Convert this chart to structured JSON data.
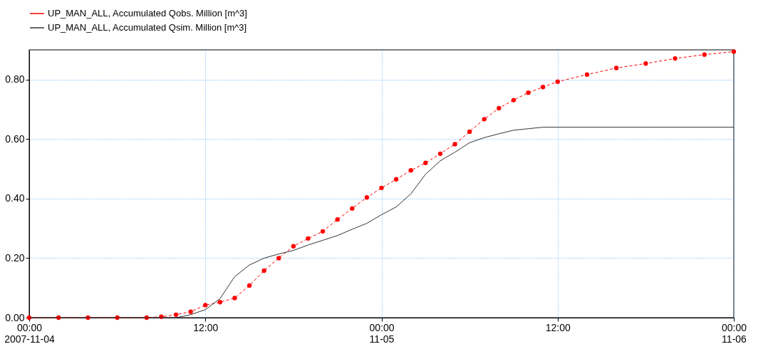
{
  "chart_data": {
    "type": "line",
    "xlim": [
      "2007-11-04T00:00",
      "2007-11-06T00:00"
    ],
    "xticks": [
      {
        "value": "2007-11-04T00:00",
        "label": "00:00\n2007-11-04"
      },
      {
        "value": "2007-11-04T12:00",
        "label": "12:00"
      },
      {
        "value": "2007-11-05T00:00",
        "label": "00:00\n11-05"
      },
      {
        "value": "2007-11-05T12:00",
        "label": "12:00"
      },
      {
        "value": "2007-11-06T00:00",
        "label": "00:00\n11-06"
      }
    ],
    "ylim": [
      0,
      0.9
    ],
    "yticks": [
      {
        "value": 0,
        "label": "0.00"
      },
      {
        "value": 0.2,
        "label": "0.20"
      },
      {
        "value": 0.4,
        "label": "0.40"
      },
      {
        "value": 0.6,
        "label": "0.60"
      },
      {
        "value": 0.8,
        "label": "0.80"
      }
    ],
    "grid": true,
    "legend": "top left",
    "series": [
      {
        "name": "UP_MAN_ALL, Accumulated Qobs. Million [m^3]",
        "color": "#ff0000",
        "marker": "circle",
        "line_style": "dashed",
        "x": [
          "2007-11-04T00:00",
          "2007-11-04T02:00",
          "2007-11-04T04:00",
          "2007-11-04T06:00",
          "2007-11-04T08:00",
          "2007-11-04T09:00",
          "2007-11-04T10:00",
          "2007-11-04T11:00",
          "2007-11-04T12:00",
          "2007-11-04T13:00",
          "2007-11-04T14:00",
          "2007-11-04T15:00",
          "2007-11-04T16:00",
          "2007-11-04T17:00",
          "2007-11-04T18:00",
          "2007-11-04T19:00",
          "2007-11-04T20:00",
          "2007-11-04T21:00",
          "2007-11-04T22:00",
          "2007-11-04T23:00",
          "2007-11-05T00:00",
          "2007-11-05T01:00",
          "2007-11-05T02:00",
          "2007-11-05T03:00",
          "2007-11-05T04:00",
          "2007-11-05T05:00",
          "2007-11-05T06:00",
          "2007-11-05T07:00",
          "2007-11-05T08:00",
          "2007-11-05T09:00",
          "2007-11-05T10:00",
          "2007-11-05T11:00",
          "2007-11-05T12:00",
          "2007-11-05T14:00",
          "2007-11-05T16:00",
          "2007-11-05T18:00",
          "2007-11-05T20:00",
          "2007-11-05T22:00",
          "2007-11-06T00:00"
        ],
        "values": [
          0,
          0,
          0,
          0,
          0,
          0.003,
          0.01,
          0.02,
          0.042,
          0.052,
          0.066,
          0.108,
          0.158,
          0.2,
          0.24,
          0.266,
          0.29,
          0.33,
          0.367,
          0.404,
          0.436,
          0.465,
          0.495,
          0.52,
          0.551,
          0.583,
          0.625,
          0.667,
          0.704,
          0.731,
          0.756,
          0.775,
          0.793,
          0.817,
          0.839,
          0.854,
          0.871,
          0.884,
          0.894
        ]
      },
      {
        "name": "UP_MAN_ALL, Accumulated Qsim. Million [m^3]",
        "color": "#333333",
        "marker": "none",
        "line_style": "solid",
        "x": [
          "2007-11-04T00:00",
          "2007-11-04T10:00",
          "2007-11-04T11:00",
          "2007-11-04T12:00",
          "2007-11-04T13:00",
          "2007-11-04T14:00",
          "2007-11-04T15:00",
          "2007-11-04T16:00",
          "2007-11-04T17:00",
          "2007-11-04T18:00",
          "2007-11-04T19:00",
          "2007-11-04T20:00",
          "2007-11-04T21:00",
          "2007-11-04T22:00",
          "2007-11-04T23:00",
          "2007-11-05T00:00",
          "2007-11-05T01:00",
          "2007-11-05T02:00",
          "2007-11-05T03:00",
          "2007-11-05T04:00",
          "2007-11-05T05:00",
          "2007-11-05T06:00",
          "2007-11-05T07:00",
          "2007-11-05T08:00",
          "2007-11-05T09:00",
          "2007-11-05T10:00",
          "2007-11-05T11:00",
          "2007-11-05T12:00",
          "2007-11-06T00:00"
        ],
        "values": [
          0,
          0,
          0.01,
          0.027,
          0.064,
          0.138,
          0.177,
          0.2,
          0.214,
          0.226,
          0.244,
          0.26,
          0.276,
          0.297,
          0.317,
          0.346,
          0.372,
          0.416,
          0.482,
          0.527,
          0.556,
          0.588,
          0.605,
          0.618,
          0.63,
          0.635,
          0.64,
          0.64,
          0.64
        ]
      }
    ]
  }
}
